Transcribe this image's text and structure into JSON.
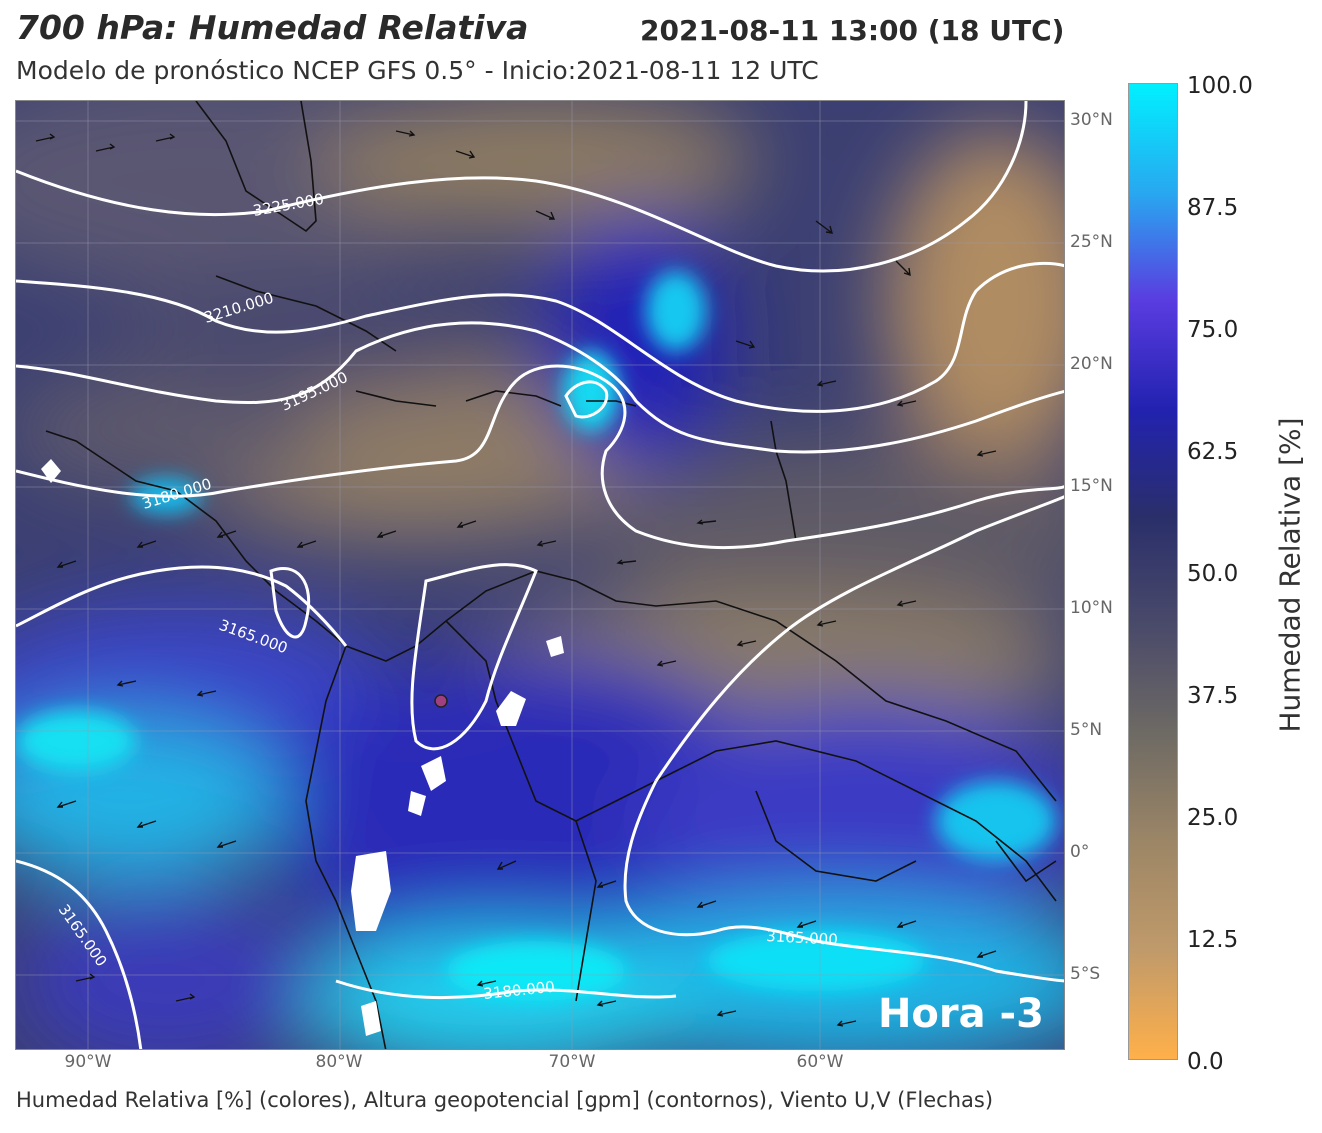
{
  "title": "700 hPa: Humedad Relativa",
  "datetime": "2021-08-11 13:00 (18 UTC)",
  "subtitle": "Modelo de pronóstico NCEP GFS 0.5° - Inicio:2021-08-11 12 UTC",
  "footer": "Humedad Relativa [%] (colores), Altura geopotencial [gpm] (contornos), Viento U,V (Flechas)",
  "hora_label": "Hora -3",
  "lat_labels": [
    "30°N",
    "25°N",
    "20°N",
    "15°N",
    "10°N",
    "5°N",
    "0°",
    "5°S"
  ],
  "lon_labels": [
    "90°W",
    "80°W",
    "70°W",
    "60°W"
  ],
  "colorbar": {
    "title": "Humedad Relativa [%]",
    "ticks": [
      "100.0",
      "87.5",
      "75.0",
      "62.5",
      "50.0",
      "37.5",
      "25.0",
      "12.5",
      "0.0"
    ],
    "colors": {
      "top": "#00f0ff",
      "light_blue": "#28a8f0",
      "purple": "#5a3ce0",
      "blue": "#2222b0",
      "navy": "#2a2f6a",
      "slate": "#4a4a6a",
      "gray_brown": "#6e6a64",
      "tan": "#9c8666",
      "light_tan": "#c09a6a",
      "orange": "#ffb04a"
    }
  },
  "contours": [
    {
      "label": "3225.000"
    },
    {
      "label": "3210.000"
    },
    {
      "label": "3195.000"
    },
    {
      "label": "3180.000"
    },
    {
      "label": "3165.000"
    },
    {
      "label": "3165.000"
    },
    {
      "label": "3165.000"
    },
    {
      "label": "3180.000"
    }
  ]
}
